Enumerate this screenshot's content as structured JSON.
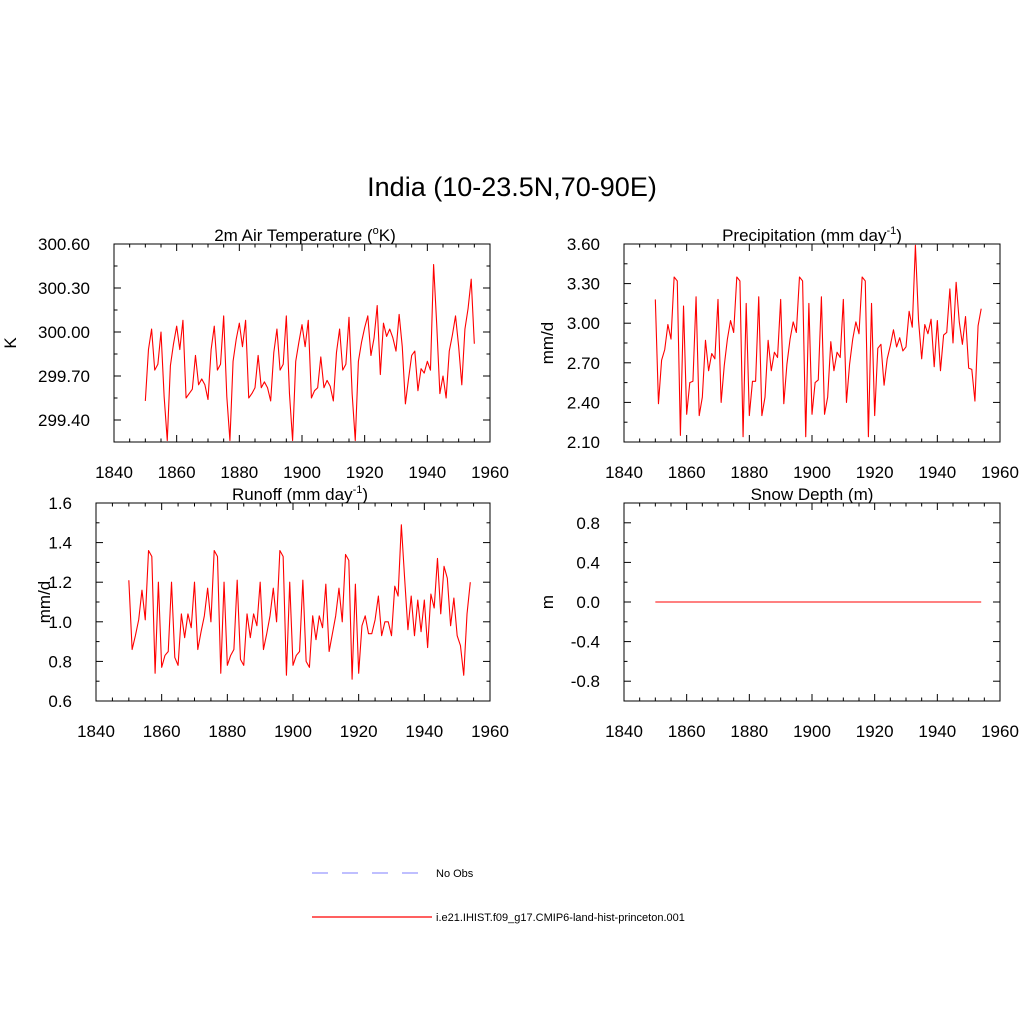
{
  "figure": {
    "title": "India (10-23.5N,70-90E)"
  },
  "colors": {
    "model": "#ff0000",
    "obs": "#9999ff",
    "axis": "#000000"
  },
  "legend": {
    "obs_label": "No Obs",
    "model_label": "i.e21.IHIST.f09_g17.CMIP6-land-hist-princeton.001"
  },
  "chart_data": [
    {
      "type": "line",
      "title": "2m Air Temperature (oK)",
      "title_parts": {
        "before": "2m Air Temperature (",
        "sup": "o",
        "after": "K)"
      },
      "xlabel": "",
      "ylabel": "K",
      "xlim": [
        1840,
        1960
      ],
      "ylim": [
        299.25,
        300.6
      ],
      "xticks": [
        1840,
        1860,
        1880,
        1900,
        1920,
        1940,
        1960
      ],
      "yticks": [
        299.4,
        299.7,
        300.0,
        300.3,
        300.6
      ],
      "ytick_labels": [
        "299.40",
        "299.70",
        "300.00",
        "300.30",
        "300.60"
      ],
      "x_start": 1850,
      "series": [
        {
          "values": [
            299.53,
            299.88,
            300.02,
            299.74,
            299.78,
            300.0,
            299.56,
            299.26,
            299.77,
            299.92,
            300.04,
            299.88,
            300.08,
            299.55,
            299.58,
            299.61,
            299.84,
            299.64,
            299.68,
            299.64,
            299.54,
            299.88,
            300.04,
            299.74,
            299.78,
            300.11,
            299.56,
            299.26,
            299.8,
            299.95,
            300.06,
            299.9,
            300.08,
            299.55,
            299.58,
            299.62,
            299.84,
            299.62,
            299.66,
            299.62,
            299.53,
            299.86,
            300.02,
            299.74,
            299.78,
            300.11,
            299.58,
            299.26,
            299.8,
            299.93,
            300.05,
            299.9,
            300.08,
            299.55,
            299.6,
            299.62,
            299.83,
            299.62,
            299.67,
            299.63,
            299.53,
            299.86,
            300.02,
            299.74,
            299.78,
            300.1,
            299.58,
            299.26,
            299.8,
            299.93,
            300.03,
            300.11,
            299.84,
            299.96,
            300.18,
            299.71,
            300.06,
            299.97,
            300.02,
            299.96,
            299.87,
            300.12,
            299.9,
            299.51,
            299.68,
            299.84,
            299.87,
            299.6,
            299.75,
            299.72,
            299.8,
            299.74,
            300.46,
            300.05,
            299.58,
            299.7,
            299.55,
            299.87,
            299.98,
            300.11,
            299.9,
            299.64,
            300.02,
            300.16,
            300.36,
            299.92
          ]
        }
      ]
    },
    {
      "type": "line",
      "title": "Precipitation (mm day-1)",
      "title_parts": {
        "before": "Precipitation (mm day",
        "sup": "-1",
        "after": ")"
      },
      "xlabel": "",
      "ylabel": "mm/d",
      "xlim": [
        1840,
        1960
      ],
      "ylim": [
        2.1,
        3.6
      ],
      "xticks": [
        1840,
        1860,
        1880,
        1900,
        1920,
        1940,
        1960
      ],
      "yticks": [
        2.1,
        2.4,
        2.7,
        3.0,
        3.3,
        3.6
      ],
      "ytick_labels": [
        "2.10",
        "2.40",
        "2.70",
        "3.00",
        "3.30",
        "3.60"
      ],
      "x_start": 1850,
      "series": [
        {
          "values": [
            3.18,
            2.39,
            2.72,
            2.8,
            2.99,
            2.88,
            3.35,
            3.32,
            2.15,
            3.13,
            2.31,
            2.55,
            2.56,
            3.2,
            2.3,
            2.44,
            2.87,
            2.64,
            2.77,
            2.73,
            3.18,
            2.4,
            2.68,
            2.88,
            3.02,
            2.93,
            3.35,
            3.32,
            2.14,
            3.15,
            2.3,
            2.56,
            2.56,
            3.2,
            2.3,
            2.44,
            2.87,
            2.64,
            2.78,
            2.74,
            3.18,
            2.39,
            2.69,
            2.88,
            3.01,
            2.93,
            3.35,
            3.32,
            2.14,
            3.15,
            2.31,
            2.55,
            2.57,
            3.2,
            2.31,
            2.44,
            2.86,
            2.64,
            2.78,
            2.74,
            3.18,
            2.4,
            2.69,
            2.88,
            3.01,
            2.92,
            3.35,
            3.32,
            2.14,
            3.15,
            2.3,
            2.81,
            2.84,
            2.53,
            2.73,
            2.83,
            2.95,
            2.82,
            2.89,
            2.79,
            2.82,
            3.09,
            2.97,
            3.59,
            3.02,
            2.73,
            2.99,
            2.92,
            3.03,
            2.67,
            3.02,
            2.64,
            2.91,
            2.93,
            3.26,
            2.85,
            3.31,
            3.01,
            2.84,
            3.05,
            2.66,
            2.65,
            2.41,
            2.98,
            3.11
          ]
        }
      ]
    },
    {
      "type": "line",
      "title": "Runoff (mm day-1)",
      "title_parts": {
        "before": "Runoff (mm day",
        "sup": "-1",
        "after": ")"
      },
      "xlabel": "",
      "ylabel": "mm/d",
      "xlim": [
        1840,
        1960
      ],
      "ylim": [
        0.6,
        1.6
      ],
      "xticks": [
        1840,
        1860,
        1880,
        1900,
        1920,
        1940,
        1960
      ],
      "yticks": [
        0.6,
        0.8,
        1.0,
        1.2,
        1.4,
        1.6
      ],
      "ytick_labels": [
        "0.6",
        "0.8",
        "1.0",
        "1.2",
        "1.4",
        "1.6"
      ],
      "x_start": 1850,
      "series": [
        {
          "values": [
            1.21,
            0.86,
            0.93,
            1.01,
            1.16,
            1.01,
            1.36,
            1.33,
            0.74,
            1.2,
            0.77,
            0.83,
            0.85,
            1.2,
            0.82,
            0.78,
            1.04,
            0.92,
            1.04,
            0.97,
            1.2,
            0.86,
            0.95,
            1.03,
            1.17,
            1.0,
            1.36,
            1.33,
            0.74,
            1.2,
            0.78,
            0.83,
            0.86,
            1.21,
            0.81,
            0.78,
            1.04,
            0.92,
            1.04,
            0.98,
            1.2,
            0.86,
            0.94,
            1.03,
            1.17,
            1.0,
            1.36,
            1.33,
            0.73,
            1.2,
            0.78,
            0.83,
            0.85,
            1.21,
            0.8,
            0.77,
            1.03,
            0.91,
            1.03,
            0.97,
            1.19,
            0.85,
            0.94,
            1.03,
            1.17,
            1.0,
            1.34,
            1.31,
            0.71,
            1.19,
            0.74,
            0.98,
            1.03,
            0.94,
            0.94,
            1.01,
            1.13,
            0.93,
            1.0,
            1.0,
            0.93,
            1.18,
            1.13,
            1.49,
            1.22,
            0.96,
            1.13,
            0.93,
            1.11,
            0.95,
            1.11,
            0.87,
            1.14,
            1.07,
            1.32,
            1.04,
            1.28,
            1.22,
            0.98,
            1.12,
            0.93,
            0.88,
            0.73,
            1.04,
            1.2
          ]
        }
      ]
    },
    {
      "type": "line",
      "title": "Snow Depth (m)",
      "title_parts": {
        "before": "Snow Depth (m)",
        "sup": "",
        "after": ""
      },
      "xlabel": "",
      "ylabel": "m",
      "xlim": [
        1840,
        1960
      ],
      "ylim": [
        -1.0,
        1.0
      ],
      "xticks": [
        1840,
        1860,
        1880,
        1900,
        1920,
        1940,
        1960
      ],
      "yticks": [
        -0.8,
        -0.4,
        0.0,
        0.4,
        0.8
      ],
      "ytick_labels": [
        "-0.8",
        "-0.4",
        "0.0",
        "0.4",
        "0.8"
      ],
      "x_start": 1850,
      "series": [
        {
          "values": [
            0,
            0,
            0,
            0,
            0,
            0,
            0,
            0,
            0,
            0,
            0,
            0,
            0,
            0,
            0,
            0,
            0,
            0,
            0,
            0,
            0,
            0,
            0,
            0,
            0,
            0,
            0,
            0,
            0,
            0,
            0,
            0,
            0,
            0,
            0,
            0,
            0,
            0,
            0,
            0,
            0,
            0,
            0,
            0,
            0,
            0,
            0,
            0,
            0,
            0,
            0,
            0,
            0,
            0,
            0,
            0,
            0,
            0,
            0,
            0,
            0,
            0,
            0,
            0,
            0,
            0,
            0,
            0,
            0,
            0,
            0,
            0,
            0,
            0,
            0,
            0,
            0,
            0,
            0,
            0,
            0,
            0,
            0,
            0,
            0,
            0,
            0,
            0,
            0,
            0,
            0,
            0,
            0,
            0,
            0,
            0,
            0,
            0,
            0,
            0,
            0,
            0,
            0,
            0,
            0
          ]
        }
      ]
    }
  ]
}
